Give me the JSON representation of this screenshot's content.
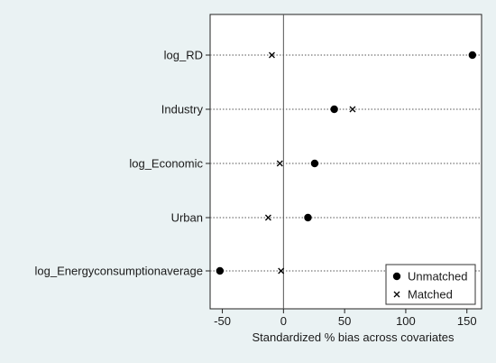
{
  "chart_data": {
    "type": "scatter",
    "title": "",
    "xlabel": "Standardized % bias across covariates",
    "ylabel": "",
    "xlim": [
      -60,
      162
    ],
    "xticks": [
      "-50",
      "0",
      "50",
      "100",
      "150"
    ],
    "xtick_values": [
      -50,
      0,
      50,
      100,
      150
    ],
    "reference_line_x": 0,
    "grid": "horizontal dotted",
    "legend_position": "bottom-right",
    "categories": [
      "log_RD",
      "Industry",
      "log_Economic",
      "Urban",
      "log_Energyconsumptionaverage"
    ],
    "series": [
      {
        "name": "Unmatched",
        "marker": "filled-circle",
        "values": [
          154.5,
          41.5,
          25.5,
          20.0,
          -52.0
        ]
      },
      {
        "name": "Matched",
        "marker": "x",
        "values": [
          -9.5,
          56.5,
          -3.0,
          -12.5,
          -2.0
        ]
      }
    ],
    "colors": {
      "plot_background": "#ffffff",
      "outer_background": "#eaf2f3",
      "marker": "#000000",
      "grid": "#555555"
    }
  }
}
